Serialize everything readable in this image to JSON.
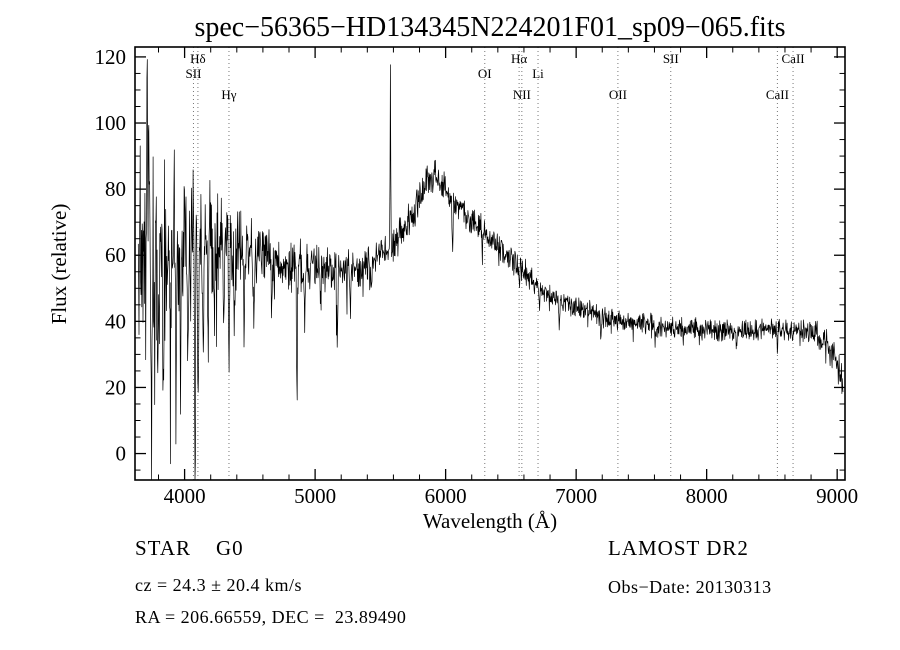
{
  "annotations": {
    "class_line": "STAR    G0",
    "survey_line": "LAMOST DR2",
    "cz_line": "cz = 24.3 ± 20.4 km/s",
    "obsdate_line": "Obs−Date: 20130313",
    "radec_line": "RA = 206.66559, DEC =  23.89490"
  },
  "chart_data": {
    "type": "line",
    "title": "spec−56365−HD134345N224201F01_sp09−065.fits",
    "xlabel": "Wavelength (Å)",
    "ylabel": "Flux (relative)",
    "xlim": [
      3620,
      9060
    ],
    "ylim": [
      -8,
      123
    ],
    "xticks": [
      4000,
      5000,
      6000,
      7000,
      8000,
      9000
    ],
    "yticks": [
      0,
      20,
      40,
      60,
      80,
      100,
      120
    ],
    "x_minor_step": 200,
    "y_minor_step": 5,
    "grid": false,
    "line_color": "#000000",
    "marker_line_color": "#777777",
    "spectral_lines": [
      {
        "label": "SII",
        "wavelength": 4068,
        "tier": 2
      },
      {
        "label": "Hδ",
        "wavelength": 4102,
        "tier": 1
      },
      {
        "label": "Hγ",
        "wavelength": 4340,
        "tier": 3
      },
      {
        "label": "OI",
        "wavelength": 6300,
        "tier": 2
      },
      {
        "label": "Hα",
        "wavelength": 6563,
        "tier": 1
      },
      {
        "label": "NII",
        "wavelength": 6584,
        "tier": 3
      },
      {
        "label": "Li",
        "wavelength": 6708,
        "tier": 2
      },
      {
        "label": "OII",
        "wavelength": 7320,
        "tier": 3
      },
      {
        "label": "SII",
        "wavelength": 7725,
        "tier": 1
      },
      {
        "label": "CaII",
        "wavelength": 8542,
        "tier": 3
      },
      {
        "label": "CaII",
        "wavelength": 8662,
        "tier": 1
      }
    ],
    "continuum_points": [
      [
        3645,
        66
      ],
      [
        3800,
        66
      ],
      [
        3900,
        65
      ],
      [
        4000,
        65
      ],
      [
        4150,
        64
      ],
      [
        4300,
        63
      ],
      [
        4500,
        61
      ],
      [
        4700,
        59
      ],
      [
        4900,
        57
      ],
      [
        5100,
        56
      ],
      [
        5250,
        55
      ],
      [
        5400,
        57
      ],
      [
        5550,
        62
      ],
      [
        5650,
        66
      ],
      [
        5750,
        73
      ],
      [
        5850,
        81
      ],
      [
        5920,
        84
      ],
      [
        6000,
        80
      ],
      [
        6100,
        75
      ],
      [
        6200,
        71
      ],
      [
        6300,
        67
      ],
      [
        6400,
        63
      ],
      [
        6500,
        59
      ],
      [
        6600,
        55
      ],
      [
        6700,
        51
      ],
      [
        6800,
        47
      ],
      [
        6950,
        45
      ],
      [
        7100,
        43
      ],
      [
        7250,
        41
      ],
      [
        7400,
        40
      ],
      [
        7550,
        39
      ],
      [
        7700,
        38
      ],
      [
        7900,
        38
      ],
      [
        8100,
        37
      ],
      [
        8300,
        37
      ],
      [
        8500,
        38
      ],
      [
        8700,
        37
      ],
      [
        8850,
        36
      ],
      [
        8950,
        32
      ],
      [
        9000,
        27
      ],
      [
        9045,
        20
      ]
    ],
    "noise_amplitude_points": [
      [
        3645,
        30
      ],
      [
        3800,
        26
      ],
      [
        3950,
        22
      ],
      [
        4100,
        19
      ],
      [
        4250,
        14
      ],
      [
        4400,
        11
      ],
      [
        4600,
        9
      ],
      [
        4800,
        7.5
      ],
      [
        5000,
        6.5
      ],
      [
        5200,
        5.5
      ],
      [
        5500,
        5
      ],
      [
        5800,
        4.5
      ],
      [
        6100,
        4
      ],
      [
        6500,
        3.5
      ],
      [
        7000,
        3
      ],
      [
        7500,
        2.8
      ],
      [
        8000,
        2.8
      ],
      [
        8500,
        3
      ],
      [
        8800,
        3.2
      ],
      [
        9045,
        4.5
      ]
    ],
    "absorption_features": [
      [
        3745,
        62
      ],
      [
        3770,
        40
      ],
      [
        3798,
        50
      ],
      [
        3835,
        45
      ],
      [
        3890,
        52
      ],
      [
        3934,
        54
      ],
      [
        3969,
        48
      ],
      [
        4026,
        38
      ],
      [
        4080,
        75
      ],
      [
        4102,
        36
      ],
      [
        4144,
        30
      ],
      [
        4180,
        42
      ],
      [
        4227,
        28
      ],
      [
        4300,
        22
      ],
      [
        4340,
        30
      ],
      [
        4383,
        28
      ],
      [
        4455,
        22
      ],
      [
        4531,
        24
      ],
      [
        4668,
        16
      ],
      [
        4861,
        32
      ],
      [
        4921,
        14
      ],
      [
        5041,
        10
      ],
      [
        5169,
        18
      ],
      [
        5270,
        10
      ],
      [
        5430,
        8
      ],
      [
        6052,
        16
      ],
      [
        6283,
        6
      ],
      [
        6563,
        5
      ],
      [
        6717,
        6
      ],
      [
        6870,
        7
      ],
      [
        7190,
        6
      ],
      [
        7605,
        5
      ],
      [
        8230,
        4
      ],
      [
        8542,
        4
      ],
      [
        8662,
        4
      ]
    ],
    "emission_features": [
      [
        3712,
        40
      ],
      [
        3727,
        35
      ],
      [
        5577,
        52
      ]
    ],
    "noise_seed": 20130313,
    "sample_step": 3
  }
}
